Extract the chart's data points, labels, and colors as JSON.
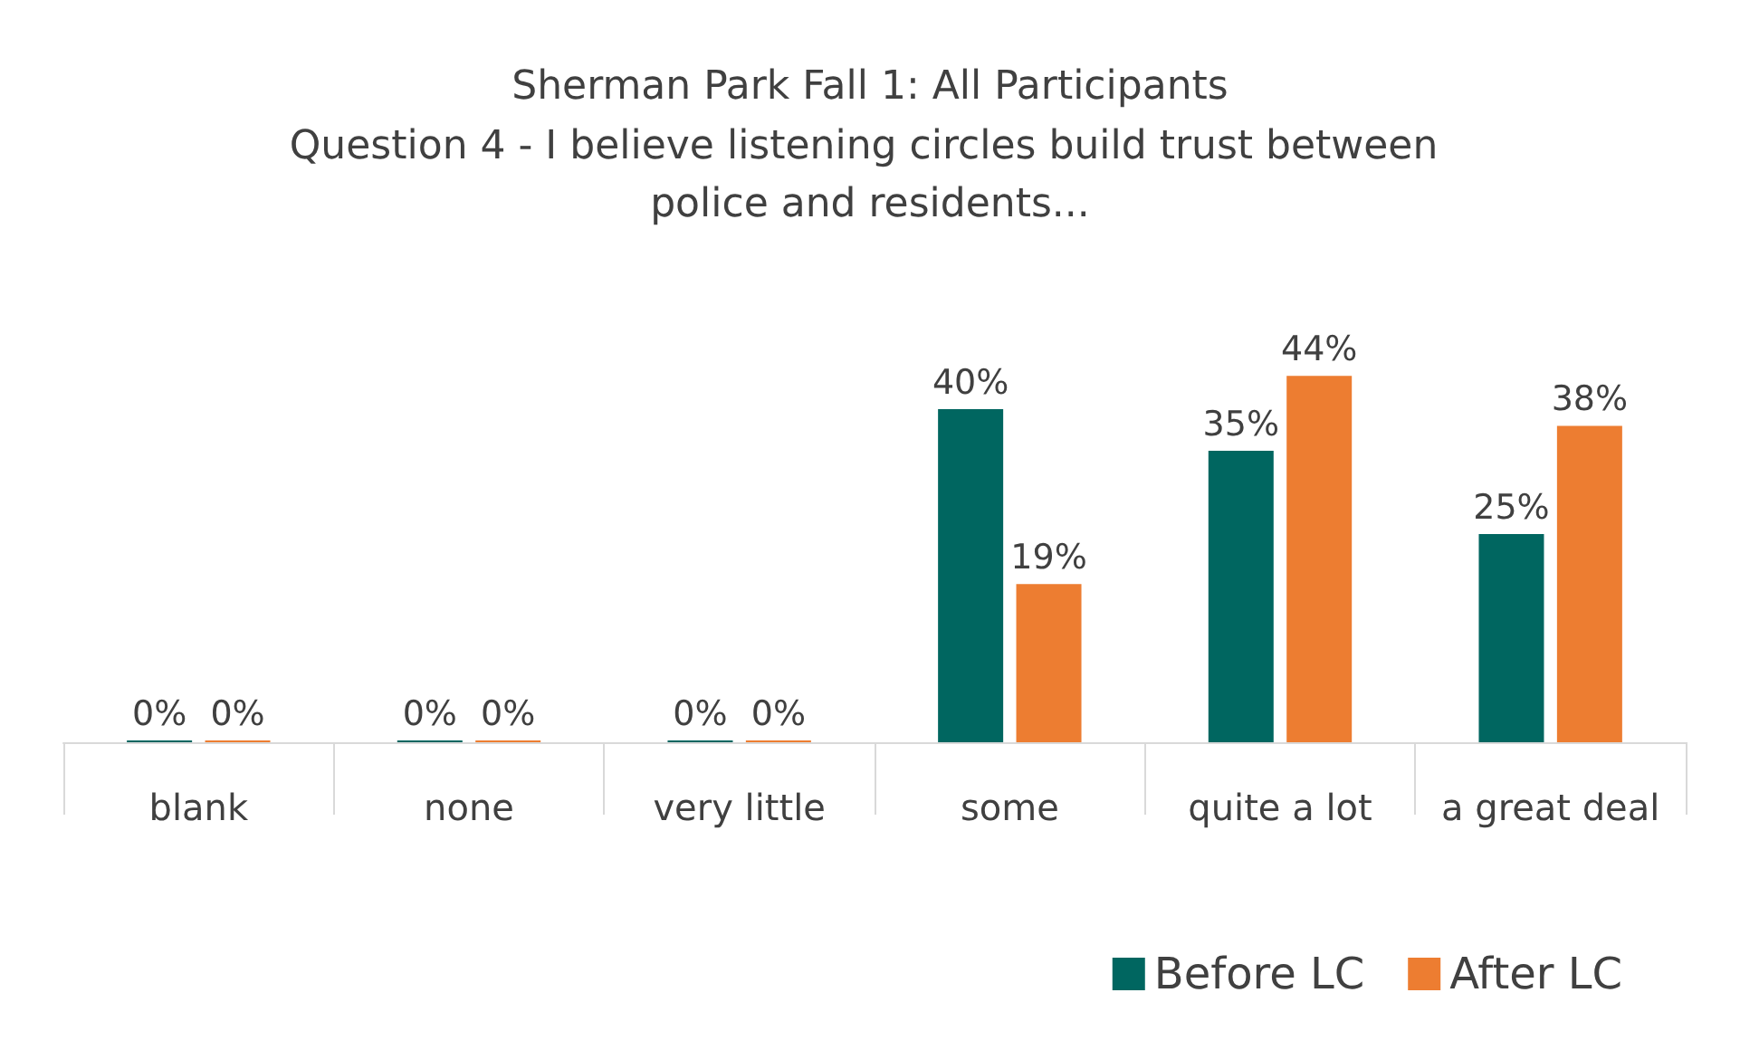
{
  "chart_data": {
    "type": "bar",
    "title": "Sherman Park Fall 1: All Participants",
    "subtitle": "Question 4 - I believe listening circles build trust between police and residents...",
    "categories": [
      "blank",
      "none",
      "very little",
      "some",
      "quite a lot",
      "a great deal"
    ],
    "series": [
      {
        "name": "Before LC",
        "color": "#006660",
        "values": [
          0,
          0,
          0,
          40,
          35,
          25
        ],
        "value_labels": [
          "0%",
          "0%",
          "0%",
          "40%",
          "35%",
          "25%"
        ]
      },
      {
        "name": "After LC",
        "color": "#ed7d31",
        "values": [
          0,
          0,
          0,
          19,
          44,
          38
        ],
        "value_labels": [
          "0%",
          "0%",
          "0%",
          "19%",
          "44%",
          "38%"
        ]
      }
    ],
    "legend": "bottom right"
  }
}
